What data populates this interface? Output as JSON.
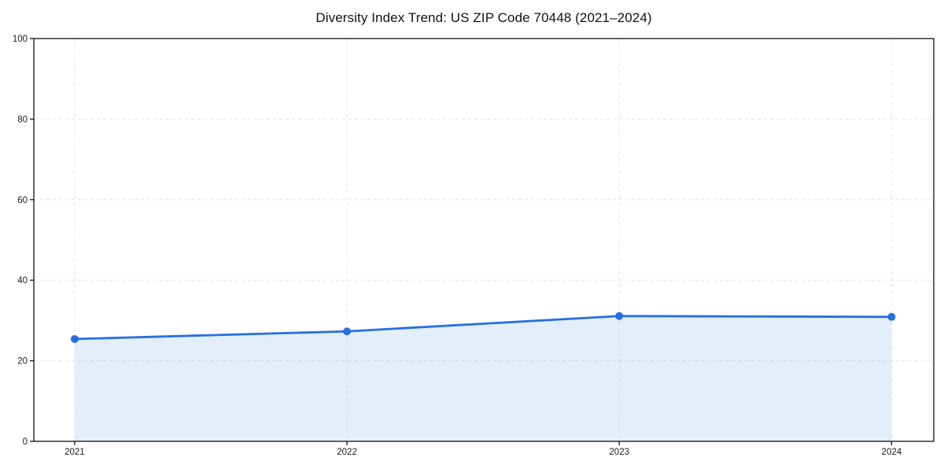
{
  "window": {
    "background": "#ffffff"
  },
  "chart_data": {
    "type": "line",
    "title": "Diversity Index Trend: US ZIP Code 70448 (2021–2024)",
    "x": [
      2021,
      2022,
      2023,
      2024
    ],
    "categories": [
      "2021",
      "2022",
      "2023",
      "2024"
    ],
    "series": [
      {
        "name": "Diversity Index",
        "values": [
          25.4,
          27.3,
          31.1,
          30.9
        ]
      }
    ],
    "xlabel": "",
    "ylabel": "",
    "xlim": [
      2020.85,
      2024.155
    ],
    "ylim": [
      0,
      100
    ],
    "xticks": [
      2021,
      2022,
      2023,
      2024
    ],
    "yticks": [
      0,
      20,
      40,
      60,
      80,
      100
    ],
    "grid": {
      "visible": true,
      "style": "dashed",
      "color": "#e3e3e3"
    },
    "legend": {
      "visible": false
    },
    "marker": {
      "shape": "circle",
      "radius": 5
    },
    "area_fill": true,
    "line_width": 2.8,
    "colors": {
      "line": "#2570e0",
      "marker": "#2570e0",
      "area": "rgba(37, 112, 224, 0.12)",
      "grid": "#e3e3e3",
      "spine": "#111111",
      "tick_text": "#1a1a1a",
      "title_text": "#111111",
      "background": "#ffffff"
    }
  }
}
